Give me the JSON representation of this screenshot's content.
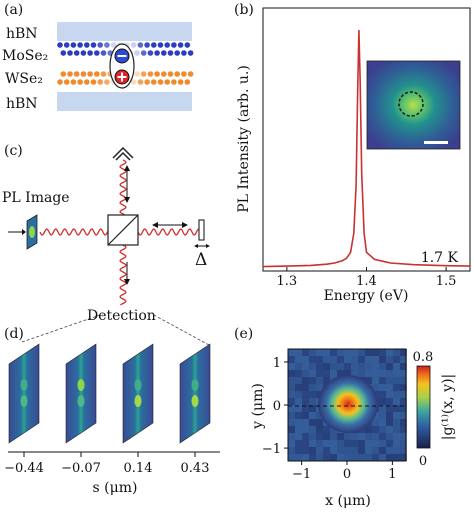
{
  "panels": {
    "a": {
      "label": "(a)",
      "layers": [
        "hBN",
        "MoSe₂",
        "WSe₂",
        "hBN"
      ],
      "colors": {
        "hbn": "#c7d7ef",
        "mose2_atom": "#2b3cc1",
        "mose2_light": "#a9b6e8",
        "wse2_atom": "#f08a2a",
        "wse2_light": "#f7c79a",
        "minus": "#2c4bd6",
        "plus": "#e2232a"
      }
    },
    "b": {
      "label": "(b)",
      "temperature": "1.7 K",
      "line_color": "#c83232"
    },
    "c": {
      "label": "(c)",
      "pl_image_label": "PL Image",
      "delta_label": "Δ",
      "detection_label": "Detection",
      "beam_color": "#d0312d"
    },
    "d": {
      "label": "(d)",
      "s_ticks": [
        "−0.44",
        "−0.07",
        "0.14",
        "0.43"
      ],
      "xlabel": "s (μm)"
    },
    "e": {
      "label": "(e)",
      "colorbar_max": "0.8",
      "colorbar_min": "0",
      "colorbar_label": "|g⁽¹⁾(x, y)|"
    }
  },
  "chart_data": [
    {
      "type": "line",
      "panel": "b",
      "xlabel": "Energy (eV)",
      "ylabel": "PL Intensity (arb. u.)",
      "xlim": [
        1.27,
        1.53
      ],
      "xticks": [
        "1.3",
        "1.4",
        "1.5"
      ],
      "xtick_values": [
        1.3,
        1.4,
        1.5
      ],
      "grid": false,
      "series": [
        {
          "x": [
            1.27,
            1.3,
            1.33,
            1.35,
            1.36,
            1.37,
            1.375,
            1.38,
            1.384,
            1.387,
            1.389,
            1.3905,
            1.392,
            1.394,
            1.397,
            1.4,
            1.41,
            1.43,
            1.46,
            1.5,
            1.53
          ],
          "y": [
            0.01,
            0.012,
            0.015,
            0.02,
            0.025,
            0.035,
            0.045,
            0.07,
            0.15,
            0.35,
            0.75,
            1.0,
            0.8,
            0.4,
            0.15,
            0.07,
            0.04,
            0.025,
            0.018,
            0.014,
            0.012
          ]
        }
      ]
    },
    {
      "type": "heatmap",
      "panel": "e",
      "xlabel": "x (μm)",
      "ylabel": "y (μm)",
      "xlim": [
        -1.3,
        1.3
      ],
      "ylim": [
        -1.3,
        1.3
      ],
      "xticks": [
        "−1",
        "0",
        "1"
      ],
      "yticks": [
        "1",
        "0",
        "−1"
      ],
      "zlim": [
        0,
        0.8
      ],
      "peak_value": 0.8
    }
  ]
}
